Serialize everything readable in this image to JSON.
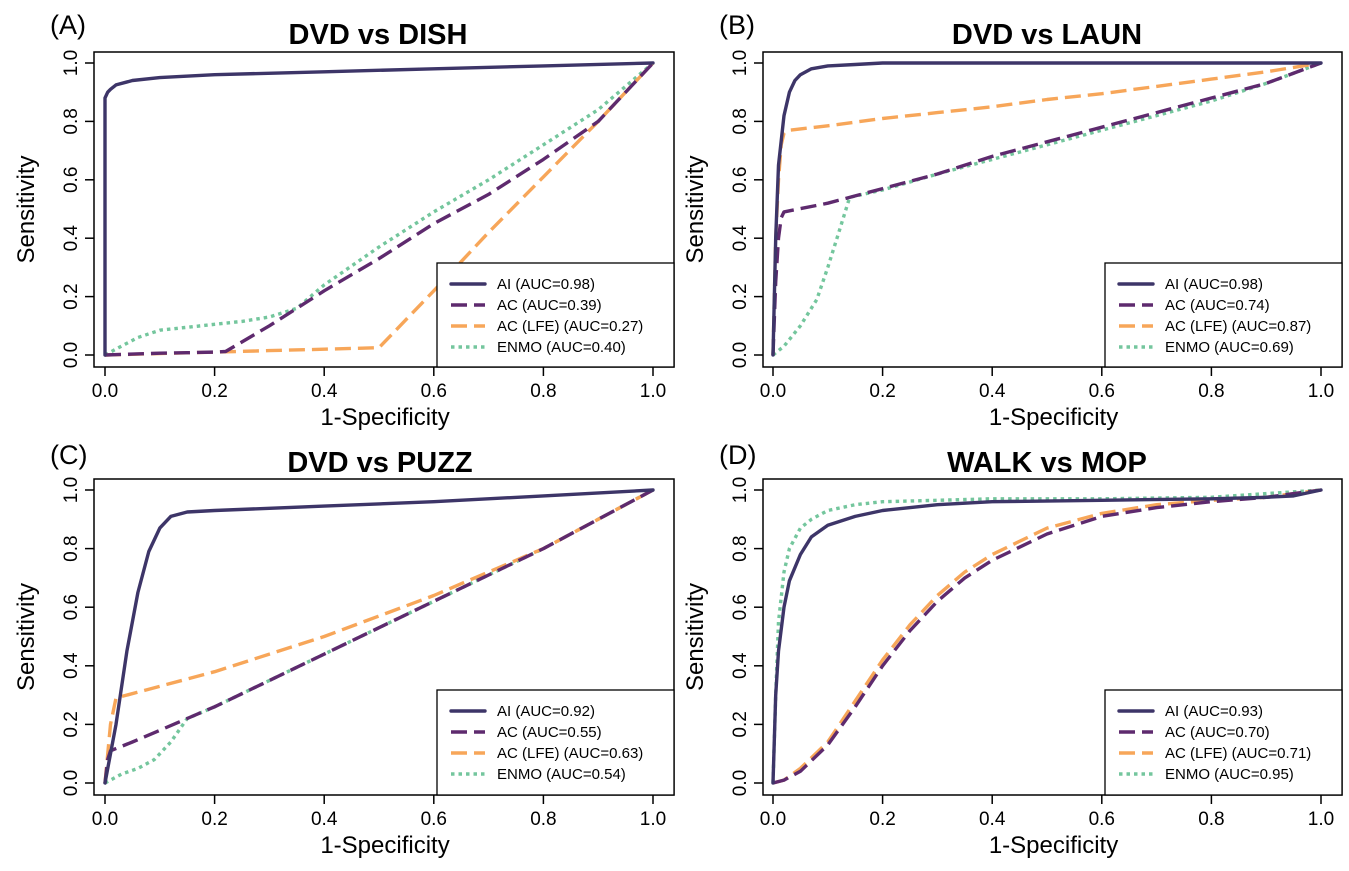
{
  "colors": {
    "AI": "#3d3568",
    "AC": "#5e2a6e",
    "AC (LFE)": "#f7a659",
    "ENMO": "#74c69d"
  },
  "chart_data": [
    {
      "type": "line",
      "panel_label": "(A)",
      "title": "DVD vs DISH",
      "xlabel": "1-Specificity",
      "ylabel": "Sensitivity",
      "xlim": [
        0,
        1
      ],
      "ylim": [
        0,
        1
      ],
      "xticks": [
        "0.0",
        "0.2",
        "0.4",
        "0.6",
        "0.8",
        "1.0"
      ],
      "yticks": [
        "0.0",
        "0.2",
        "0.4",
        "0.6",
        "0.8",
        "1.0"
      ],
      "grid": false,
      "legend_position": "bottom-right",
      "series": [
        {
          "name": "AI",
          "legend": "AI (AUC=0.98)",
          "style": "solid",
          "x": [
            0,
            0,
            0.005,
            0.01,
            0.02,
            0.05,
            0.1,
            0.2,
            0.4,
            0.6,
            0.8,
            1.0
          ],
          "y": [
            0,
            0.88,
            0.9,
            0.91,
            0.925,
            0.94,
            0.95,
            0.96,
            0.97,
            0.98,
            0.99,
            1.0
          ]
        },
        {
          "name": "AC",
          "legend": "AC (AUC=0.39)",
          "style": "dashed",
          "x": [
            0,
            0.05,
            0.1,
            0.15,
            0.2,
            0.22,
            0.3,
            0.4,
            0.5,
            0.6,
            0.7,
            0.8,
            0.9,
            1.0
          ],
          "y": [
            0,
            0.003,
            0.006,
            0.008,
            0.01,
            0.012,
            0.1,
            0.22,
            0.33,
            0.45,
            0.55,
            0.67,
            0.8,
            1.0
          ]
        },
        {
          "name": "AC (LFE)",
          "legend": "AC (LFE) (AUC=0.27)",
          "style": "dashed",
          "x": [
            0,
            0.1,
            0.2,
            0.3,
            0.4,
            0.5,
            0.6,
            0.7,
            0.8,
            0.9,
            1.0
          ],
          "y": [
            0,
            0.005,
            0.01,
            0.015,
            0.02,
            0.025,
            0.22,
            0.42,
            0.61,
            0.8,
            1.0
          ]
        },
        {
          "name": "ENMO",
          "legend": "ENMO (AUC=0.40)",
          "style": "dotted",
          "x": [
            0,
            0.03,
            0.06,
            0.1,
            0.15,
            0.2,
            0.25,
            0.3,
            0.35,
            0.4,
            0.5,
            0.6,
            0.7,
            0.8,
            0.9,
            1.0
          ],
          "y": [
            0,
            0.03,
            0.06,
            0.085,
            0.095,
            0.105,
            0.115,
            0.13,
            0.16,
            0.24,
            0.37,
            0.49,
            0.6,
            0.72,
            0.84,
            1.0
          ]
        }
      ]
    },
    {
      "type": "line",
      "panel_label": "(B)",
      "title": "DVD vs LAUN",
      "xlabel": "1-Specificity",
      "ylabel": "Sensitivity",
      "xlim": [
        0,
        1
      ],
      "ylim": [
        0,
        1
      ],
      "xticks": [
        "0.0",
        "0.2",
        "0.4",
        "0.6",
        "0.8",
        "1.0"
      ],
      "yticks": [
        "0.0",
        "0.2",
        "0.4",
        "0.6",
        "0.8",
        "1.0"
      ],
      "grid": false,
      "legend_position": "bottom-right",
      "series": [
        {
          "name": "AI",
          "legend": "AI (AUC=0.98)",
          "style": "solid",
          "x": [
            0,
            0.005,
            0.01,
            0.02,
            0.03,
            0.04,
            0.05,
            0.07,
            0.1,
            0.15,
            0.2,
            0.5,
            1.0
          ],
          "y": [
            0,
            0.4,
            0.65,
            0.82,
            0.9,
            0.94,
            0.96,
            0.98,
            0.99,
            0.995,
            1.0,
            1.0,
            1.0
          ]
        },
        {
          "name": "AC",
          "legend": "AC (AUC=0.74)",
          "style": "dashed",
          "x": [
            0,
            0.005,
            0.01,
            0.015,
            0.02,
            0.1,
            0.15,
            0.2,
            0.3,
            0.4,
            0.5,
            0.6,
            0.7,
            0.8,
            0.9,
            1.0
          ],
          "y": [
            0,
            0.25,
            0.4,
            0.47,
            0.49,
            0.52,
            0.545,
            0.57,
            0.62,
            0.68,
            0.73,
            0.78,
            0.83,
            0.88,
            0.93,
            1.0
          ]
        },
        {
          "name": "AC (LFE)",
          "legend": "AC (LFE) (AUC=0.87)",
          "style": "dashed",
          "x": [
            0,
            0.005,
            0.01,
            0.015,
            0.02,
            0.03,
            0.1,
            0.2,
            0.3,
            0.4,
            0.5,
            0.6,
            0.7,
            0.8,
            0.9,
            1.0
          ],
          "y": [
            0,
            0.4,
            0.6,
            0.72,
            0.76,
            0.77,
            0.785,
            0.81,
            0.83,
            0.85,
            0.875,
            0.895,
            0.92,
            0.945,
            0.97,
            1.0
          ]
        },
        {
          "name": "ENMO",
          "legend": "ENMO (AUC=0.69)",
          "style": "dotted",
          "x": [
            0,
            0.02,
            0.05,
            0.08,
            0.1,
            0.12,
            0.14,
            0.2,
            0.3,
            0.4,
            0.5,
            0.6,
            0.7,
            0.8,
            0.9,
            1.0
          ],
          "y": [
            0,
            0.03,
            0.1,
            0.19,
            0.3,
            0.42,
            0.54,
            0.565,
            0.62,
            0.67,
            0.72,
            0.77,
            0.82,
            0.87,
            0.93,
            1.0
          ]
        }
      ]
    },
    {
      "type": "line",
      "panel_label": "(C)",
      "title": "DVD vs PUZZ",
      "xlabel": "1-Specificity",
      "ylabel": "Sensitivity",
      "xlim": [
        0,
        1
      ],
      "ylim": [
        0,
        1
      ],
      "xticks": [
        "0.0",
        "0.2",
        "0.4",
        "0.6",
        "0.8",
        "1.0"
      ],
      "yticks": [
        "0.0",
        "0.2",
        "0.4",
        "0.6",
        "0.8",
        "1.0"
      ],
      "grid": false,
      "legend_position": "bottom-right",
      "series": [
        {
          "name": "AI",
          "legend": "AI (AUC=0.92)",
          "style": "solid",
          "x": [
            0,
            0.02,
            0.04,
            0.06,
            0.08,
            0.1,
            0.12,
            0.15,
            0.2,
            0.4,
            0.6,
            0.8,
            1.0
          ],
          "y": [
            0,
            0.2,
            0.45,
            0.65,
            0.79,
            0.87,
            0.91,
            0.925,
            0.93,
            0.945,
            0.96,
            0.98,
            1.0
          ]
        },
        {
          "name": "AC",
          "legend": "AC (AUC=0.55)",
          "style": "dashed",
          "x": [
            0,
            0.005,
            0.01,
            0.05,
            0.1,
            0.15,
            0.2,
            0.3,
            0.4,
            0.5,
            0.6,
            0.7,
            0.8,
            0.9,
            1.0
          ],
          "y": [
            0,
            0.08,
            0.11,
            0.14,
            0.18,
            0.22,
            0.26,
            0.35,
            0.44,
            0.53,
            0.62,
            0.71,
            0.8,
            0.9,
            1.0
          ]
        },
        {
          "name": "AC (LFE)",
          "legend": "AC (LFE) (AUC=0.63)",
          "style": "dashed",
          "x": [
            0,
            0.01,
            0.02,
            0.1,
            0.2,
            0.3,
            0.4,
            0.5,
            0.6,
            0.7,
            0.8,
            0.9,
            1.0
          ],
          "y": [
            0,
            0.2,
            0.29,
            0.33,
            0.38,
            0.44,
            0.5,
            0.57,
            0.64,
            0.72,
            0.8,
            0.9,
            1.0
          ]
        },
        {
          "name": "ENMO",
          "legend": "ENMO (AUC=0.54)",
          "style": "dotted",
          "x": [
            0,
            0.03,
            0.06,
            0.09,
            0.12,
            0.15,
            0.2,
            0.3,
            0.4,
            0.5,
            0.6,
            0.7,
            0.8,
            0.9,
            1.0
          ],
          "y": [
            0,
            0.03,
            0.05,
            0.08,
            0.14,
            0.22,
            0.26,
            0.35,
            0.44,
            0.53,
            0.62,
            0.71,
            0.8,
            0.9,
            1.0
          ]
        }
      ]
    },
    {
      "type": "line",
      "panel_label": "(D)",
      "title": "WALK vs MOP",
      "xlabel": "1-Specificity",
      "ylabel": "Sensitivity",
      "xlim": [
        0,
        1
      ],
      "ylim": [
        0,
        1
      ],
      "xticks": [
        "0.0",
        "0.2",
        "0.4",
        "0.6",
        "0.8",
        "1.0"
      ],
      "yticks": [
        "0.0",
        "0.2",
        "0.4",
        "0.6",
        "0.8",
        "1.0"
      ],
      "grid": false,
      "legend_position": "bottom-right",
      "series": [
        {
          "name": "AI",
          "legend": "AI (AUC=0.93)",
          "style": "solid",
          "x": [
            0,
            0.005,
            0.01,
            0.02,
            0.03,
            0.05,
            0.07,
            0.1,
            0.15,
            0.2,
            0.3,
            0.4,
            0.6,
            0.8,
            0.9,
            0.95,
            1.0
          ],
          "y": [
            0,
            0.3,
            0.45,
            0.6,
            0.69,
            0.78,
            0.84,
            0.88,
            0.91,
            0.93,
            0.95,
            0.96,
            0.965,
            0.97,
            0.975,
            0.98,
            1.0
          ]
        },
        {
          "name": "AC",
          "legend": "AC (AUC=0.70)",
          "style": "dashed",
          "x": [
            0,
            0.02,
            0.05,
            0.1,
            0.15,
            0.2,
            0.25,
            0.3,
            0.35,
            0.4,
            0.5,
            0.6,
            0.7,
            0.8,
            0.9,
            1.0
          ],
          "y": [
            0,
            0.01,
            0.04,
            0.13,
            0.26,
            0.4,
            0.52,
            0.62,
            0.7,
            0.76,
            0.85,
            0.91,
            0.94,
            0.96,
            0.975,
            1.0
          ]
        },
        {
          "name": "AC (LFE)",
          "legend": "AC (LFE) (AUC=0.71)",
          "style": "dashed",
          "x": [
            0,
            0.02,
            0.05,
            0.1,
            0.15,
            0.2,
            0.25,
            0.3,
            0.35,
            0.4,
            0.5,
            0.6,
            0.7,
            0.8,
            0.9,
            1.0
          ],
          "y": [
            0,
            0.01,
            0.05,
            0.14,
            0.28,
            0.42,
            0.54,
            0.64,
            0.72,
            0.78,
            0.87,
            0.92,
            0.95,
            0.965,
            0.975,
            1.0
          ]
        },
        {
          "name": "ENMO",
          "legend": "ENMO (AUC=0.95)",
          "style": "dotted",
          "x": [
            0,
            0.005,
            0.01,
            0.02,
            0.03,
            0.05,
            0.07,
            0.1,
            0.15,
            0.2,
            0.3,
            0.4,
            0.6,
            0.8,
            1.0
          ],
          "y": [
            0,
            0.3,
            0.55,
            0.72,
            0.8,
            0.87,
            0.9,
            0.93,
            0.95,
            0.96,
            0.965,
            0.97,
            0.97,
            0.975,
            1.0
          ]
        }
      ]
    }
  ]
}
